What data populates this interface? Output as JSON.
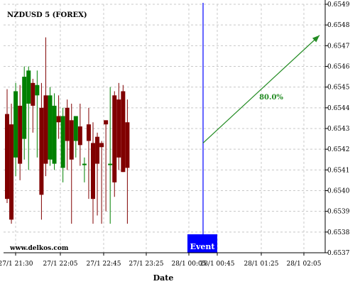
{
  "chart_data": {
    "type": "candlestick",
    "title": "NZDUSD 5 (FOREX)",
    "xlabel": "Date",
    "ylabel": "",
    "ylim": [
      0.6537,
      0.6549
    ],
    "y_ticks": [
      "0.6537",
      "0.6538",
      "0.6539",
      "0.6540",
      "0.6541",
      "0.6542",
      "0.6543",
      "0.6544",
      "0.6545",
      "0.6546",
      "0.6547",
      "0.6548",
      "0.6549"
    ],
    "x_ticks": [
      "27/1 21:30",
      "27/1 22:05",
      "27/1 22:45",
      "27/1 23:25",
      "28/1 00:05",
      "28/1 00:45",
      "28/1 01:25",
      "28/1 02:05"
    ],
    "grid": true,
    "colors": {
      "up": "#008000",
      "down": "#800000",
      "event": "#0000ff",
      "forecast": "#228B22",
      "grid": "#c8c8c8"
    },
    "candles": [
      {
        "o": 0.65437,
        "h": 0.65449,
        "l": 0.65394,
        "c": 0.65396
      },
      {
        "o": 0.65432,
        "h": 0.65442,
        "l": 0.65384,
        "c": 0.65386
      },
      {
        "o": 0.65416,
        "h": 0.65452,
        "l": 0.65407,
        "c": 0.65448
      },
      {
        "o": 0.65441,
        "h": 0.65451,
        "l": 0.65405,
        "c": 0.65413
      },
      {
        "o": 0.65425,
        "h": 0.6546,
        "l": 0.65415,
        "c": 0.65455
      },
      {
        "o": 0.65442,
        "h": 0.6546,
        "l": 0.6541,
        "c": 0.65458
      },
      {
        "o": 0.65452,
        "h": 0.65454,
        "l": 0.65428,
        "c": 0.65441
      },
      {
        "o": 0.65446,
        "h": 0.65458,
        "l": 0.65416,
        "c": 0.65451
      },
      {
        "o": 0.6544,
        "h": 0.65452,
        "l": 0.65386,
        "c": 0.65398
      },
      {
        "o": 0.65446,
        "h": 0.65474,
        "l": 0.65407,
        "c": 0.65413
      },
      {
        "o": 0.65415,
        "h": 0.6545,
        "l": 0.65412,
        "c": 0.65446
      },
      {
        "o": 0.65413,
        "h": 0.65447,
        "l": 0.6541,
        "c": 0.65441
      },
      {
        "o": 0.65436,
        "h": 0.65446,
        "l": 0.65425,
        "c": 0.65433
      },
      {
        "o": 0.65411,
        "h": 0.6544,
        "l": 0.65404,
        "c": 0.65436
      },
      {
        "o": 0.6544,
        "h": 0.65444,
        "l": 0.6541,
        "c": 0.65424
      },
      {
        "o": 0.65434,
        "h": 0.65442,
        "l": 0.65384,
        "c": 0.65415
      },
      {
        "o": 0.65424,
        "h": 0.65436,
        "l": 0.65416,
        "c": 0.65436
      },
      {
        "o": 0.65431,
        "h": 0.65442,
        "l": 0.65412,
        "c": 0.65422
      },
      {
        "o": 0.65413,
        "h": 0.65416,
        "l": 0.65404,
        "c": 0.65413
      },
      {
        "o": 0.65432,
        "h": 0.6544,
        "l": 0.65396,
        "c": 0.65424
      },
      {
        "o": 0.65423,
        "h": 0.65433,
        "l": 0.65384,
        "c": 0.65396
      },
      {
        "o": 0.65426,
        "h": 0.65428,
        "l": 0.65388,
        "c": 0.65413
      },
      {
        "o": 0.65423,
        "h": 0.65424,
        "l": 0.65384,
        "c": 0.65421
      },
      {
        "o": 0.65434,
        "h": 0.65434,
        "l": 0.6539,
        "c": 0.65432
      },
      {
        "o": 0.65413,
        "h": 0.6545,
        "l": 0.65384,
        "c": 0.65413
      },
      {
        "o": 0.65446,
        "h": 0.65448,
        "l": 0.65397,
        "c": 0.65404
      },
      {
        "o": 0.65444,
        "h": 0.65452,
        "l": 0.6541,
        "c": 0.65416
      },
      {
        "o": 0.65448,
        "h": 0.65451,
        "l": 0.65409,
        "c": 0.65409
      },
      {
        "o": 0.65433,
        "h": 0.65444,
        "l": 0.65384,
        "c": 0.65411
      }
    ],
    "event": {
      "label": "Event",
      "x_label": "28/1 00:45"
    },
    "forecast": {
      "start": 0.65423,
      "end": 0.65475,
      "label": "80.0%"
    },
    "watermark": "www.delkos.com"
  }
}
